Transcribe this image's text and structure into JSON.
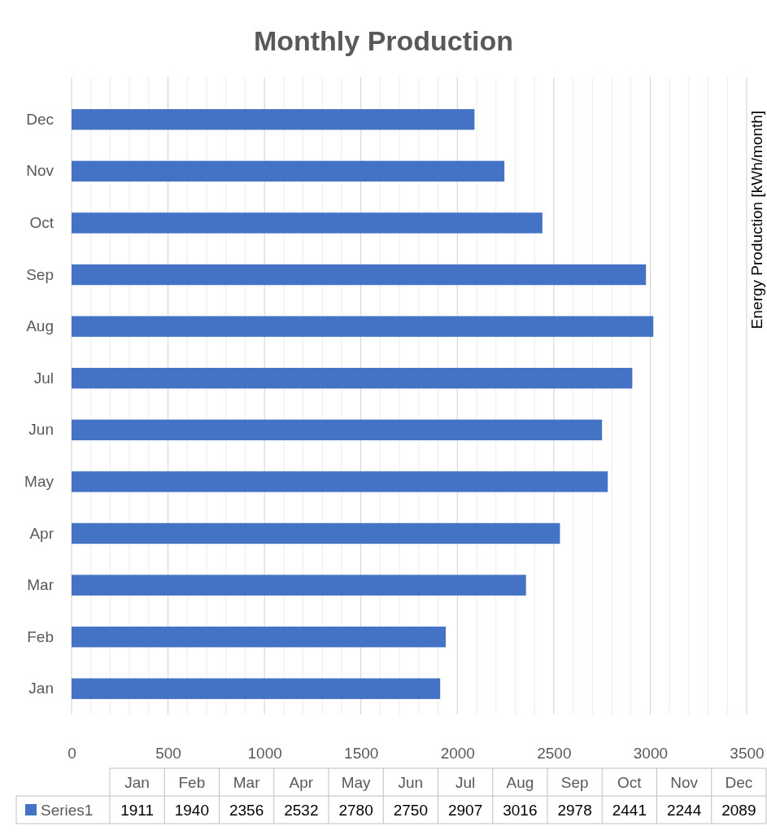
{
  "chart_data": [
    {
      "type": "bar",
      "orientation": "horizontal",
      "title": "Monthly Production",
      "ylabel": "Energy Production [kWh/month]",
      "categories": [
        "Dec",
        "Nov",
        "Oct",
        "Sep",
        "Aug",
        "Jul",
        "Jun",
        "May",
        "Apr",
        "Mar",
        "Feb",
        "Jan"
      ],
      "series": [
        {
          "color": "#4472c4",
          "values": [
            2089,
            2244,
            2441,
            2978,
            3016,
            2907,
            2750,
            2780,
            2532,
            2356,
            1940,
            1911
          ]
        }
      ],
      "xlim": [
        0,
        3500
      ],
      "xticks": [
        0,
        {
          "value": 100,
          "label": null
        },
        {
          "value": 200,
          "label": null
        },
        {
          "value": 300,
          "label": null
        },
        {
          "value": 400,
          "label": null
        },
        500,
        {
          "value": 600,
          "label": null
        },
        {
          "value": 700,
          "label": null
        },
        {
          "value": 800,
          "label": null
        },
        {
          "value": 900,
          "label": null
        },
        1000,
        {
          "value": 1100,
          "label": null
        },
        {
          "value": 1200,
          "label": null
        },
        {
          "value": 1300,
          "label": null
        },
        {
          "value": 1400,
          "label": null
        },
        1500,
        {
          "value": 1600,
          "label": null
        },
        {
          "value": 1700,
          "label": null
        },
        {
          "value": 1800,
          "label": null
        },
        {
          "value": 1900,
          "label": null
        },
        2000,
        {
          "value": 2100,
          "label": null
        },
        {
          "value": 2200,
          "label": null
        },
        {
          "value": 2300,
          "label": null
        },
        {
          "value": 2400,
          "label": null
        },
        2500,
        {
          "value": 2600,
          "label": null
        },
        {
          "value": 2700,
          "label": null
        },
        {
          "value": 2800,
          "label": null
        },
        {
          "value": 2900,
          "label": null
        },
        3000,
        {
          "value": 3100,
          "label": null
        },
        {
          "value": 3200,
          "label": null
        },
        {
          "value": 3300,
          "label": null
        },
        {
          "value": 3400,
          "label": null
        },
        3500
      ],
      "grid": "x"
    },
    {
      "type": "other",
      "categories": [
        "Jan",
        "Feb",
        "Mar",
        "Apr",
        "May",
        "Jun",
        "Jul",
        "Aug",
        "Sep",
        "Oct",
        "Nov",
        "Dec"
      ],
      "series": [
        {
          "name": "Series1",
          "color": "#4472c4",
          "values": [
            1911,
            1940,
            2356,
            2532,
            2780,
            2750,
            2907,
            3016,
            2978,
            2441,
            2244,
            2089
          ],
          "value_labels": [
            "1911",
            "1940",
            "2356",
            "2532",
            "2780",
            "2750",
            "2907",
            "3016",
            "2978",
            "2441",
            "2244",
            "2089"
          ]
        }
      ],
      "legend": "left"
    }
  ]
}
